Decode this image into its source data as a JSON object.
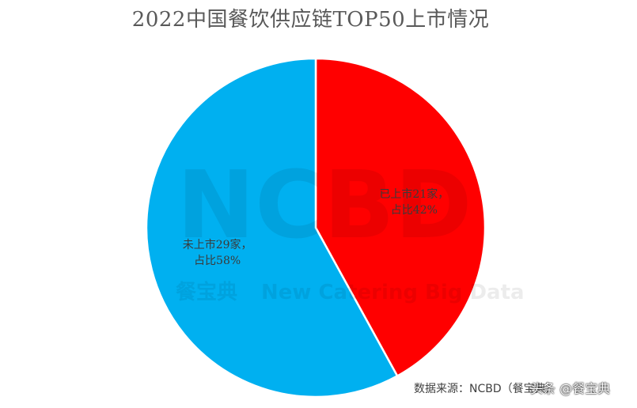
{
  "chart_data": {
    "type": "pie",
    "title": "2022中国餐饮供应链TOP50上市情况",
    "slices": [
      {
        "name": "已上市",
        "count": 21,
        "unit": "家",
        "percent": 42,
        "color": "#ff0000",
        "label_line1": "已上市21家，",
        "label_line2": "占比42%"
      },
      {
        "name": "未上市",
        "count": 29,
        "unit": "家",
        "percent": 58,
        "color": "#00b0f0",
        "label_line1": "未上市29家，",
        "label_line2": "占比58%"
      }
    ],
    "start_angle": "12 o'clock",
    "direction": "clockwise",
    "legend": "none"
  },
  "watermark": {
    "logo_text": "NCBD",
    "brand_cn": "餐宝典",
    "brand_en": "New Catering Big Data"
  },
  "source_text": "数据来源：NCBD（餐宝典）",
  "credit_text": "头条 @餐宝典"
}
